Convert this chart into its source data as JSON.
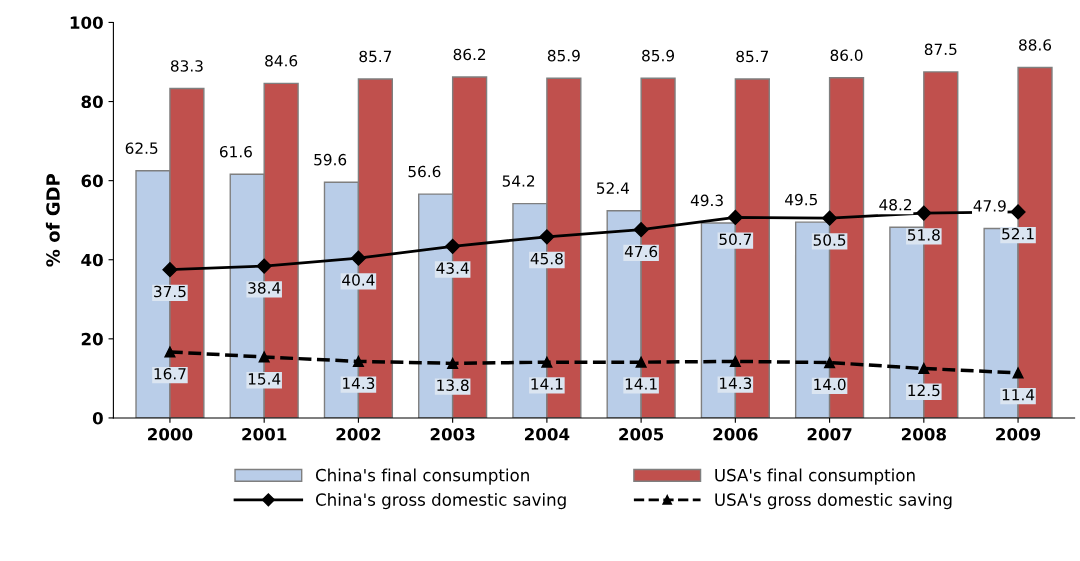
{
  "chart_data": {
    "type": "bar",
    "ylabel": "% of GDP",
    "categories": [
      "2000",
      "2001",
      "2002",
      "2003",
      "2004",
      "2005",
      "2006",
      "2007",
      "2008",
      "2009"
    ],
    "series": [
      {
        "name": "China's final consumption",
        "color": "#b9cde8",
        "values": [
          62.5,
          61.6,
          59.6,
          56.6,
          54.2,
          52.4,
          49.3,
          49.5,
          48.2,
          47.9
        ],
        "value_labels": [
          "62.5",
          "61.6",
          "59.6",
          "56.6",
          "54.2",
          "52.4",
          "49.3",
          "49.5",
          "48.2",
          "47.9"
        ]
      },
      {
        "name": "USA's final consumption",
        "color": "#c0504d",
        "values": [
          83.3,
          84.6,
          85.7,
          86.2,
          85.9,
          85.9,
          85.7,
          86.0,
          87.5,
          88.6
        ],
        "value_labels": [
          "83.3",
          "84.6",
          "85.7",
          "86.2",
          "85.9",
          "85.9",
          "85.7",
          "86.0",
          "87.5",
          "88.6"
        ]
      },
      {
        "name": "China's gross domestic saving",
        "type": "line",
        "color": "#000000",
        "marker": "diamond",
        "line_style": "solid",
        "values": [
          37.5,
          38.4,
          40.4,
          43.4,
          45.8,
          47.6,
          50.7,
          50.5,
          51.8,
          52.1
        ],
        "value_labels": [
          "37.5",
          "38.4",
          "40.4",
          "43.4",
          "45.8",
          "47.6",
          "50.7",
          "50.5",
          "51.8",
          "52.1"
        ]
      },
      {
        "name": "USA's gross domestic saving",
        "type": "line",
        "color": "#000000",
        "marker": "triangle",
        "line_style": "dashed",
        "values": [
          16.7,
          15.4,
          14.3,
          13.8,
          14.1,
          14.1,
          14.3,
          14.0,
          12.5,
          11.4
        ],
        "value_labels": [
          "16.7",
          "15.4",
          "14.3",
          "13.8",
          "14.1",
          "14.1",
          "14.3",
          "14.0",
          "12.5",
          "11.4"
        ]
      }
    ],
    "ylim": [
      0,
      100
    ],
    "yticks": [
      0,
      20,
      40,
      60,
      80,
      100
    ],
    "grid": false,
    "legend": "bottom"
  }
}
